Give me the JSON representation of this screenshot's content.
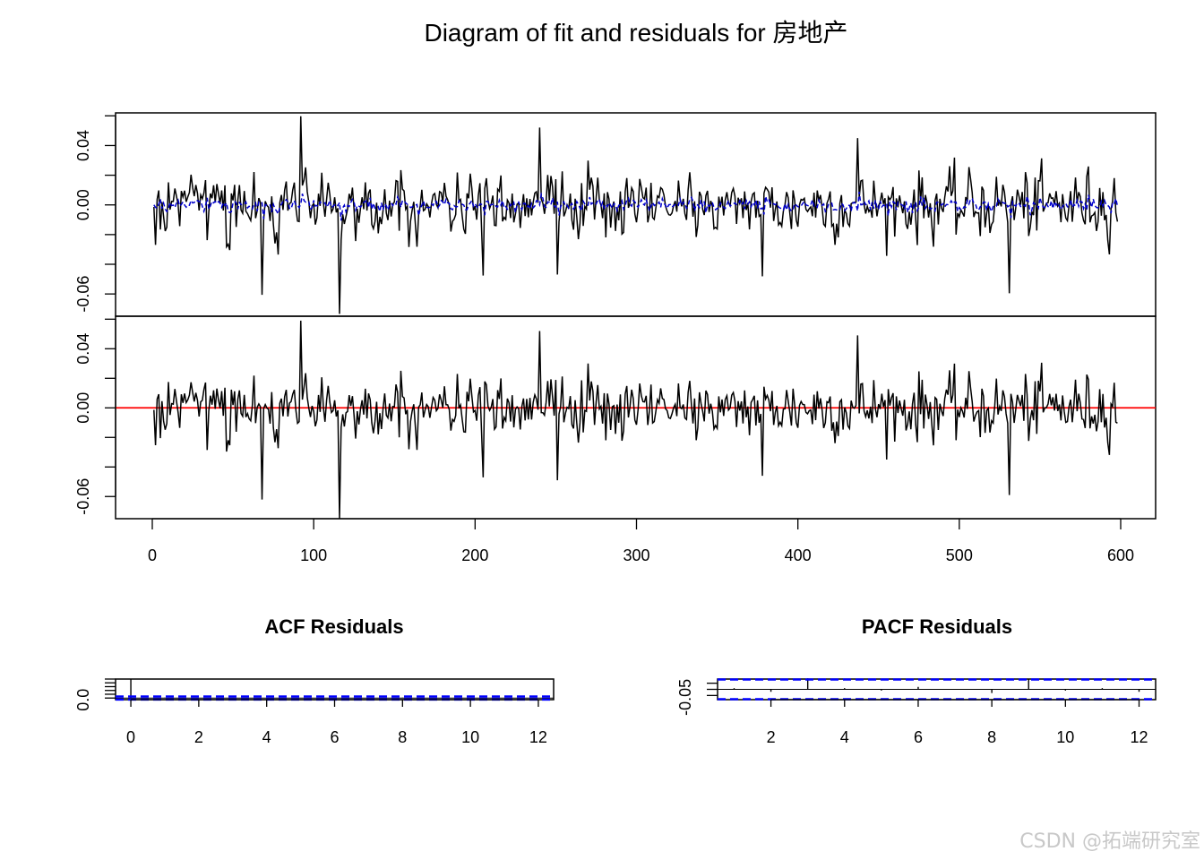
{
  "title": "Diagram of fit and residuals for 房地产",
  "watermark": "CSDN @拓端研究室",
  "chart_data": [
    {
      "type": "line",
      "panel": "fit",
      "x_range": [
        1,
        598
      ],
      "ylim": [
        -0.075,
        0.062
      ],
      "yticks": [
        0.04,
        0.0,
        -0.06
      ],
      "ytick_labels": [
        "0.04",
        "0.00",
        "-0.06"
      ],
      "grid": false,
      "series": [
        {
          "role": "observed",
          "color": "#000000",
          "style": "solid"
        },
        {
          "role": "fitted",
          "color": "#0000cc",
          "style": "dashed"
        }
      ],
      "annotations": [
        {
          "x": 92,
          "y": 0.059
        },
        {
          "x": 116,
          "y": -0.075
        },
        {
          "x": 68,
          "y": -0.062
        },
        {
          "x": 240,
          "y": 0.052
        },
        {
          "x": 251,
          "y": -0.049
        },
        {
          "x": 205,
          "y": -0.047
        },
        {
          "x": 437,
          "y": 0.049
        },
        {
          "x": 531,
          "y": -0.059
        },
        {
          "x": 378,
          "y": -0.046
        },
        {
          "x": 596,
          "y": 0.017
        }
      ]
    },
    {
      "type": "line",
      "panel": "residuals",
      "x_range": [
        1,
        598
      ],
      "xticks": [
        0,
        100,
        200,
        300,
        400,
        500,
        600
      ],
      "xtick_labels": [
        "0",
        "100",
        "200",
        "300",
        "400",
        "500",
        "600"
      ],
      "ylim": [
        -0.075,
        0.062
      ],
      "yticks": [
        0.04,
        0.0,
        -0.06
      ],
      "ytick_labels": [
        "0.04",
        "0.00",
        "-0.06"
      ],
      "reference_line": {
        "y": 0,
        "color": "#ff0000"
      },
      "grid": false,
      "series": [
        {
          "role": "residual",
          "color": "#000000",
          "style": "solid"
        }
      ]
    },
    {
      "type": "bar",
      "panel": "acf",
      "title": "ACF Residuals",
      "x": [
        0,
        1,
        2,
        3,
        4,
        5,
        6,
        7,
        8,
        9,
        10,
        11,
        12
      ],
      "values": [
        1.0,
        0.02,
        -0.01,
        0.01,
        -0.02,
        0.0,
        0.01,
        -0.01,
        0.02,
        0.0,
        -0.01,
        0.01,
        0.0
      ],
      "xticks": [
        0,
        2,
        4,
        6,
        8,
        10,
        12
      ],
      "xtick_labels": [
        "0",
        "2",
        "4",
        "6",
        "8",
        "10",
        "12"
      ],
      "ytick_labels": [
        "0.0"
      ],
      "confidence_band": 0.08,
      "band_color": "#0000ff"
    },
    {
      "type": "bar",
      "panel": "pacf",
      "title": "PACF Residuals",
      "x": [
        1,
        2,
        3,
        4,
        5,
        6,
        7,
        8,
        9,
        10,
        11,
        12
      ],
      "values": [
        0.01,
        -0.02,
        0.09,
        0.01,
        -0.01,
        0.02,
        0.0,
        -0.03,
        0.08,
        -0.01,
        0.01,
        -0.02
      ],
      "xticks": [
        2,
        4,
        6,
        8,
        10,
        12
      ],
      "xtick_labels": [
        "2",
        "4",
        "6",
        "8",
        "10",
        "12"
      ],
      "ytick_labels": [
        "-0.05"
      ],
      "confidence_band": 0.08,
      "band_color": "#0000ff"
    }
  ]
}
